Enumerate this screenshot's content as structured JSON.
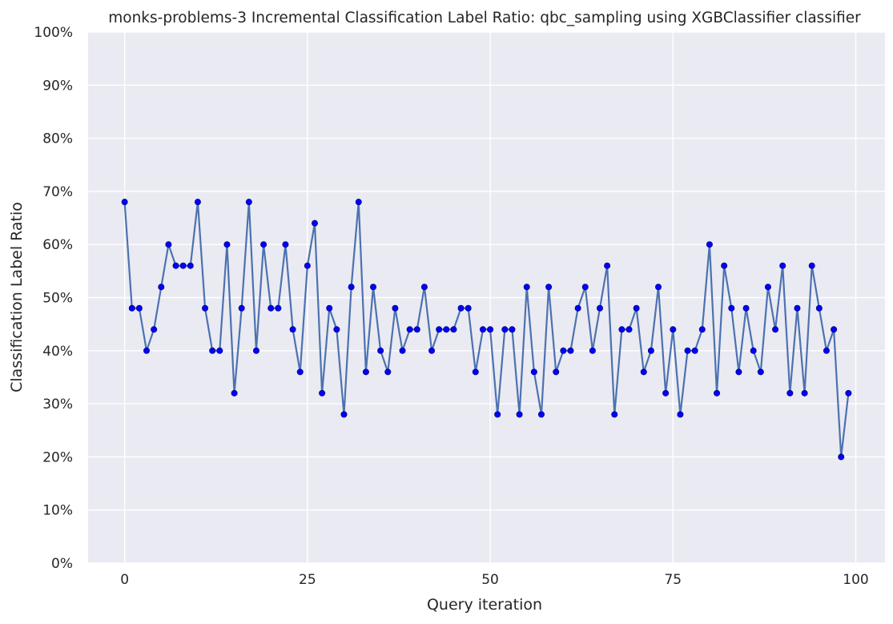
{
  "chart_data": {
    "type": "line",
    "title": "monks-problems-3 Incremental Classification Label Ratio: qbc_sampling using XGBClassifier classifier",
    "xlabel": "Query iteration",
    "ylabel": "Classification Label Ratio",
    "xlim": [
      -5,
      104
    ],
    "ylim": [
      0,
      100
    ],
    "x_ticks": [
      0,
      25,
      50,
      75,
      100
    ],
    "x_tick_labels": [
      "0",
      "25",
      "50",
      "75",
      "100"
    ],
    "y_ticks": [
      0,
      10,
      20,
      30,
      40,
      50,
      60,
      70,
      80,
      90,
      100
    ],
    "y_tick_labels": [
      "0%",
      "10%",
      "20%",
      "30%",
      "40%",
      "50%",
      "60%",
      "70%",
      "80%",
      "90%",
      "100%"
    ],
    "grid": true,
    "colors": {
      "background": "#eaeaf2",
      "grid": "#ffffff",
      "line": "#4c72b0",
      "marker": "#0000ff",
      "marker_edge": "#00008b"
    },
    "series": [
      {
        "x": [
          0,
          1,
          2,
          3,
          4,
          5,
          6,
          7,
          8,
          9,
          10,
          11,
          12,
          13,
          14,
          15,
          16,
          17,
          18,
          19,
          20,
          21,
          22,
          23,
          24,
          25,
          26,
          27,
          28,
          29,
          30,
          31,
          32,
          33,
          34,
          35,
          36,
          37,
          38,
          39,
          40,
          41,
          42,
          43,
          44,
          45,
          46,
          47,
          48,
          49,
          50,
          51,
          52,
          53,
          54,
          55,
          56,
          57,
          58,
          59,
          60,
          61,
          62,
          63,
          64,
          65,
          66,
          67,
          68,
          69,
          70,
          71,
          72,
          73,
          74,
          75,
          76,
          77,
          78,
          79,
          80,
          81,
          82,
          83,
          84,
          85,
          86,
          87,
          88,
          89,
          90,
          91,
          92,
          93,
          94,
          95,
          96,
          97,
          98,
          99
        ],
        "values": [
          68,
          48,
          48,
          40,
          44,
          52,
          60,
          56,
          56,
          56,
          68,
          48,
          40,
          40,
          60,
          32,
          48,
          68,
          40,
          60,
          48,
          48,
          60,
          44,
          36,
          56,
          64,
          32,
          48,
          44,
          28,
          52,
          68,
          36,
          52,
          40,
          36,
          48,
          40,
          44,
          44,
          52,
          40,
          44,
          44,
          44,
          48,
          48,
          36,
          44,
          44,
          28,
          44,
          44,
          28,
          52,
          36,
          28,
          52,
          36,
          40,
          40,
          48,
          52,
          40,
          48,
          56,
          28,
          44,
          44,
          48,
          36,
          40,
          52,
          32,
          44,
          28,
          40,
          40,
          44,
          60,
          32,
          56,
          48,
          36,
          48,
          40,
          36,
          52,
          44,
          56,
          32,
          48,
          32,
          56,
          48,
          40,
          44,
          20,
          32
        ]
      }
    ]
  }
}
